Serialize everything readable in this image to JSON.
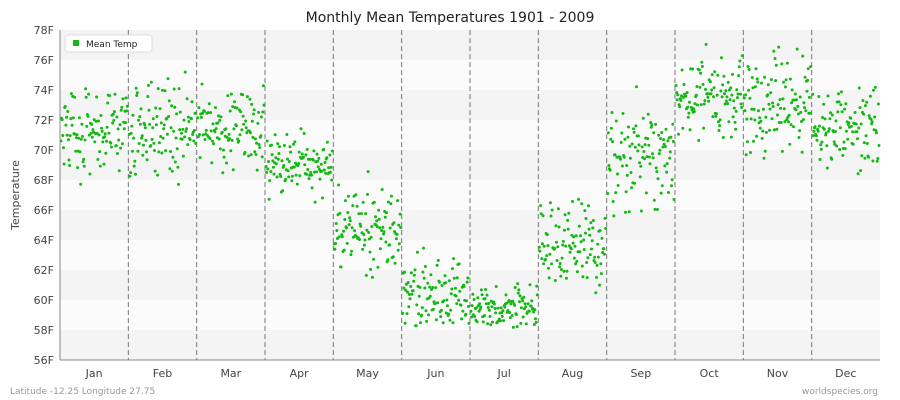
{
  "chart_data": {
    "type": "scatter",
    "title": "Monthly Mean Temperatures 1901 - 2009",
    "xlabel": "",
    "ylabel": "Temperature",
    "ylim": [
      56,
      78
    ],
    "y_ticks": [
      "56F",
      "58F",
      "60F",
      "62F",
      "64F",
      "66F",
      "68F",
      "70F",
      "72F",
      "74F",
      "76F",
      "78F"
    ],
    "categories": [
      "Jan",
      "Feb",
      "Mar",
      "Apr",
      "May",
      "Jun",
      "Jul",
      "Aug",
      "Sep",
      "Oct",
      "Nov",
      "Dec"
    ],
    "legend": {
      "placement": "top-left"
    },
    "grid": {
      "horizontal_bands": true,
      "month_separators": "dashed"
    },
    "series": [
      {
        "name": "Mean Temp",
        "color": "#14b814",
        "month_ranges": [
          {
            "month": "Jan",
            "min": 67.2,
            "max": 74.2
          },
          {
            "month": "Feb",
            "min": 66.5,
            "max": 75.2
          },
          {
            "month": "Mar",
            "min": 68.4,
            "max": 74.5
          },
          {
            "month": "Apr",
            "min": 66.5,
            "max": 71.6
          },
          {
            "month": "May",
            "min": 61.2,
            "max": 68.7
          },
          {
            "month": "Jun",
            "min": 58.1,
            "max": 64.8
          },
          {
            "month": "Jul",
            "min": 56.9,
            "max": 61.3
          },
          {
            "month": "Aug",
            "min": 60.0,
            "max": 67.5
          },
          {
            "month": "Sep",
            "min": 65.6,
            "max": 75.1
          },
          {
            "month": "Oct",
            "min": 70.3,
            "max": 77.2
          },
          {
            "month": "Nov",
            "min": 69.1,
            "max": 77.7
          },
          {
            "month": "Dec",
            "min": 68.2,
            "max": 74.8
          }
        ],
        "month_centers": [
          71.5,
          71.4,
          71.2,
          69.0,
          64.6,
          60.3,
          59.4,
          63.9,
          69.6,
          73.6,
          73.1,
          71.5
        ]
      }
    ]
  },
  "footer": {
    "left": "Latitude -12.25 Longitude 27.75",
    "right": "worldspecies.org"
  },
  "colors": {
    "band_dark": "#f4f4f4",
    "band_light": "#fbfbfb",
    "separator": "#777777",
    "axis": "#888888"
  }
}
